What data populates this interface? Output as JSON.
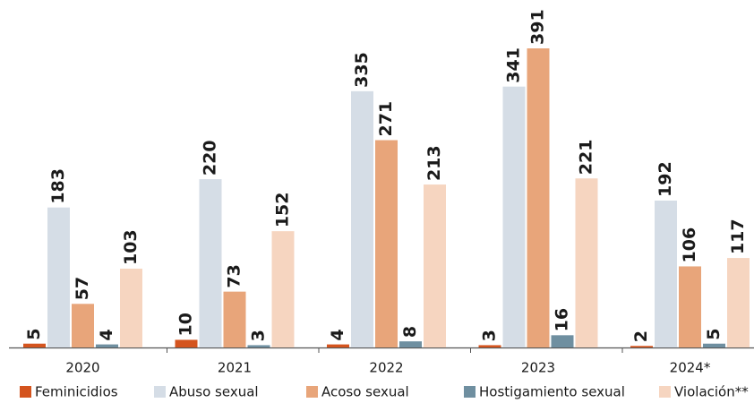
{
  "chart_data": {
    "type": "bar",
    "categories": [
      "2020",
      "2021",
      "2022",
      "2023",
      "2024*"
    ],
    "series": [
      {
        "name": "Feminicidios",
        "color": "#d4541e",
        "values": [
          5,
          10,
          4,
          3,
          2
        ]
      },
      {
        "name": "Abuso sexual",
        "color": "#d5dde6",
        "values": [
          183,
          220,
          335,
          341,
          192
        ]
      },
      {
        "name": "Acoso sexual",
        "color": "#e8a57a",
        "values": [
          57,
          73,
          271,
          391,
          106
        ]
      },
      {
        "name": "Hostigamiento sexual",
        "color": "#6f8fa0",
        "values": [
          4,
          3,
          8,
          16,
          5
        ]
      },
      {
        "name": "Violación**",
        "color": "#f6d5c0",
        "values": [
          103,
          152,
          213,
          221,
          117
        ]
      }
    ]
  }
}
